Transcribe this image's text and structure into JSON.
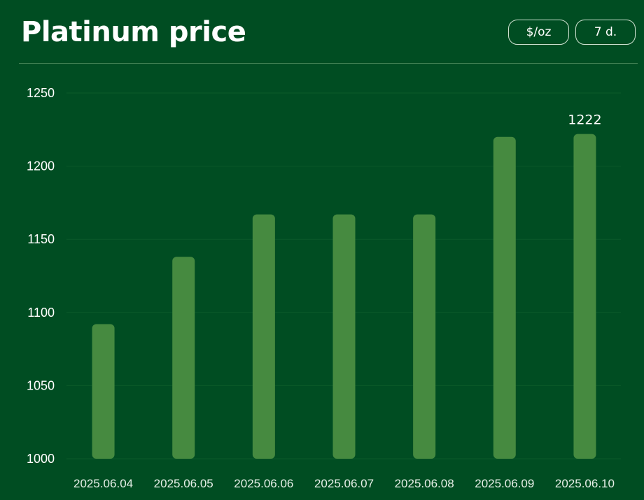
{
  "header": {
    "title": "Platinum price",
    "unit_label": "$/oz",
    "range_label": "7 d."
  },
  "colors": {
    "background": "#004d22",
    "bar": "#468a40",
    "grid": "#0b5a2a"
  },
  "chart_data": {
    "type": "bar",
    "title": "Platinum price",
    "xlabel": "",
    "ylabel": "",
    "categories": [
      "2025.06.04",
      "2025.06.05",
      "2025.06.06",
      "2025.06.07",
      "2025.06.08",
      "2025.06.09",
      "2025.06.10"
    ],
    "values": [
      1092,
      1138,
      1167,
      1167,
      1167,
      1220,
      1222
    ],
    "ylim": [
      1000,
      1250
    ],
    "yticks": [
      1000,
      1050,
      1100,
      1150,
      1200,
      1250
    ],
    "grid": true,
    "data_labels": [
      {
        "index": 6,
        "text": "1222"
      }
    ]
  }
}
